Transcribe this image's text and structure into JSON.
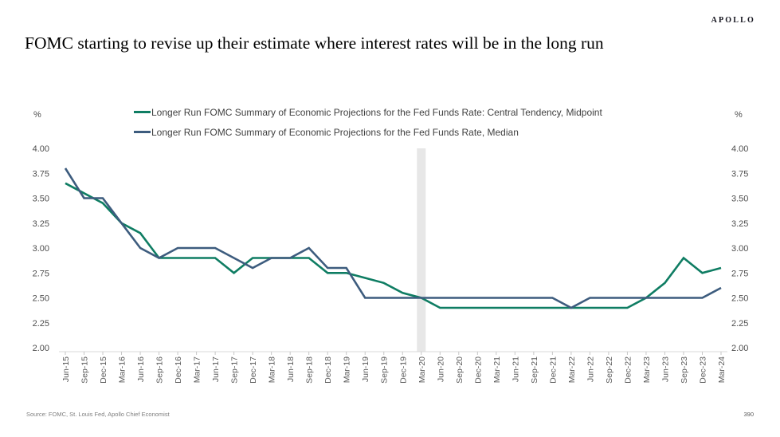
{
  "header": {
    "brand": "APOLLO",
    "title": "FOMC starting to revise up their estimate where interest rates will be in the long run"
  },
  "footer": {
    "source": "Source: FOMC, St. Louis Fed, Apollo Chief Economist",
    "page_number": "390"
  },
  "chart_data": {
    "type": "line",
    "title": "",
    "xlabel": "",
    "ylabel_left": "%",
    "ylabel_right": "%",
    "ylim": [
      2.0,
      4.0
    ],
    "yticks": [
      4.0,
      3.75,
      3.5,
      3.25,
      3.0,
      2.75,
      2.5,
      2.25,
      2.0
    ],
    "grid": false,
    "legend_position": "top",
    "categories": [
      "Jun-15",
      "Sep-15",
      "Dec-15",
      "Mar-16",
      "Jun-16",
      "Sep-16",
      "Dec-16",
      "Mar-17",
      "Jun-17",
      "Sep-17",
      "Dec-17",
      "Mar-18",
      "Jun-18",
      "Sep-18",
      "Dec-18",
      "Mar-19",
      "Jun-19",
      "Sep-19",
      "Dec-19",
      "Mar-20",
      "Jun-20",
      "Sep-20",
      "Dec-20",
      "Mar-21",
      "Jun-21",
      "Sep-21",
      "Dec-21",
      "Mar-22",
      "Jun-22",
      "Sep-22",
      "Dec-22",
      "Mar-23",
      "Jun-23",
      "Sep-23",
      "Dec-23",
      "Mar-24"
    ],
    "series": [
      {
        "name": "Longer Run FOMC Summary of Economic Projections for the Fed Funds Rate: Central Tendency, Midpoint",
        "color": "#0F7D63",
        "values": [
          3.65,
          3.55,
          3.45,
          3.25,
          3.15,
          2.9,
          2.9,
          2.9,
          2.9,
          2.75,
          2.9,
          2.9,
          2.9,
          2.9,
          2.75,
          2.75,
          2.7,
          2.65,
          2.55,
          2.5,
          2.4,
          2.4,
          2.4,
          2.4,
          2.4,
          2.4,
          2.4,
          2.4,
          2.4,
          2.4,
          2.4,
          2.5,
          2.65,
          2.9,
          2.75,
          2.8
        ]
      },
      {
        "name": "Longer Run FOMC Summary of Economic Projections for the Fed Funds Rate, Median",
        "color": "#3D5C7E",
        "values": [
          3.8,
          3.5,
          3.5,
          3.25,
          3.0,
          2.9,
          3.0,
          3.0,
          3.0,
          2.9,
          2.8,
          2.9,
          2.9,
          3.0,
          2.8,
          2.8,
          2.5,
          2.5,
          2.5,
          2.5,
          2.5,
          2.5,
          2.5,
          2.5,
          2.5,
          2.5,
          2.5,
          2.4,
          2.5,
          2.5,
          2.5,
          2.5,
          2.5,
          2.5,
          2.5,
          2.6
        ]
      }
    ],
    "highlight_band": {
      "category": "Mar-20",
      "color": "#E7E7E7"
    },
    "axis_colors": {
      "axis_line": "#D9D9D9",
      "tick_mark": "#C6C6C6",
      "tick_label": "#595959"
    }
  }
}
